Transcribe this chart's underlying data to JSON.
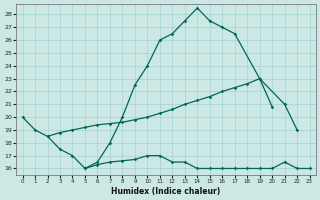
{
  "title": "",
  "xlabel": "Humidex (Indice chaleur)",
  "bg_color": "#cce8e4",
  "line_color": "#006655",
  "grid_color": "#99cccc",
  "xlim": [
    -0.5,
    23.5
  ],
  "ylim": [
    15.5,
    28.8
  ],
  "yticks": [
    16,
    17,
    18,
    19,
    20,
    21,
    22,
    23,
    24,
    25,
    26,
    27,
    28
  ],
  "xticks": [
    0,
    1,
    2,
    3,
    4,
    5,
    6,
    7,
    8,
    9,
    10,
    11,
    12,
    13,
    14,
    15,
    16,
    17,
    18,
    19,
    20,
    21,
    22,
    23
  ],
  "series1": {
    "x": [
      0,
      1,
      2,
      3,
      4,
      5,
      6,
      7,
      8,
      9,
      10,
      11,
      12,
      13,
      14,
      15,
      16,
      17,
      19,
      21,
      22
    ],
    "y": [
      20,
      19,
      18.5,
      17.5,
      17,
      16,
      16.5,
      18,
      20,
      22.5,
      24,
      26,
      26.5,
      27.5,
      28.5,
      27.5,
      27,
      26.5,
      23,
      21,
      19
    ]
  },
  "series2": {
    "x": [
      2,
      3,
      4,
      5,
      6,
      7,
      8,
      9,
      10,
      11,
      12,
      13,
      14,
      15,
      16,
      17,
      18,
      19,
      20
    ],
    "y": [
      18.5,
      18.8,
      19.0,
      19.2,
      19.4,
      19.5,
      19.6,
      19.8,
      20.0,
      20.3,
      20.6,
      21.0,
      21.3,
      21.6,
      22.0,
      22.3,
      22.6,
      23.0,
      20.8
    ]
  },
  "series3": {
    "x": [
      5,
      6,
      7,
      8,
      9,
      10,
      11,
      12,
      13,
      14,
      15,
      16,
      17,
      18,
      19,
      20,
      21,
      22,
      23
    ],
    "y": [
      16,
      16.3,
      16.5,
      16.6,
      16.7,
      17,
      17,
      16.5,
      16.5,
      16,
      16,
      16,
      16,
      16,
      16,
      16,
      16.5,
      16,
      16
    ]
  }
}
